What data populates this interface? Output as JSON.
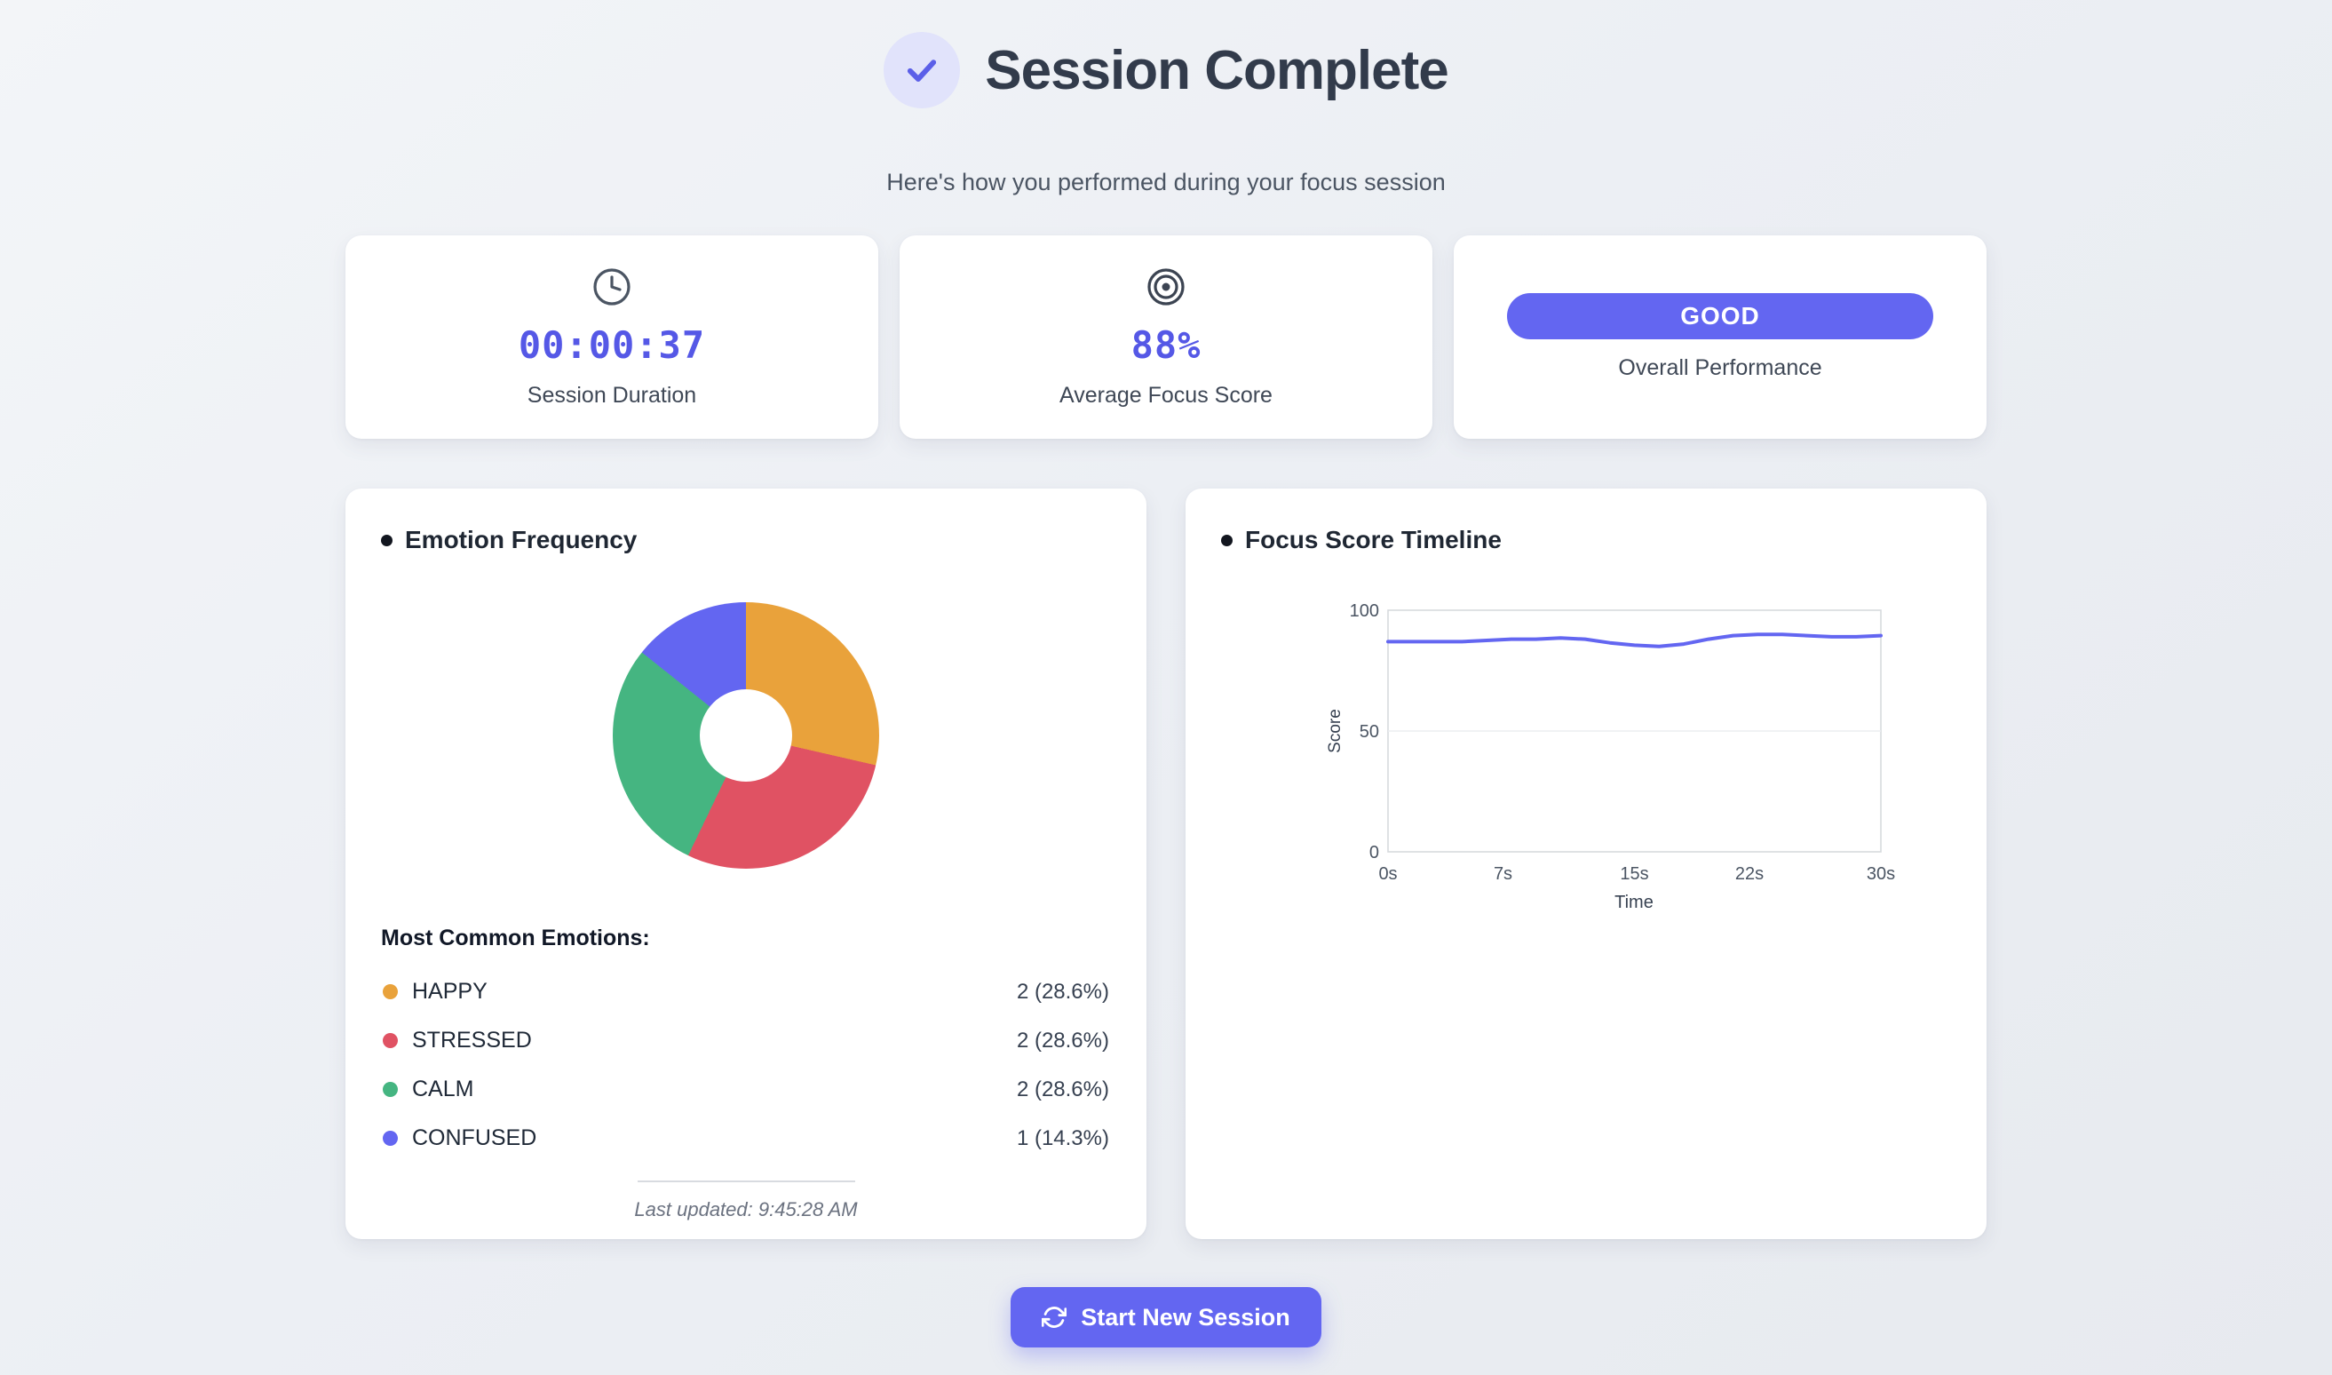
{
  "header": {
    "title": "Session Complete",
    "subtitle": "Here's how you performed during your focus session"
  },
  "stats": [
    {
      "icon": "clock-icon",
      "value": "00:00:37",
      "label": "Session Duration"
    },
    {
      "icon": "target-icon",
      "value": "88%",
      "label": "Average Focus Score"
    },
    {
      "badge": "GOOD",
      "label": "Overall Performance"
    }
  ],
  "emotion_panel": {
    "title": "Emotion Frequency",
    "legend_heading": "Most Common Emotions:",
    "emotions": [
      {
        "name": "HAPPY",
        "count": "2 (28.6%)",
        "value": 28.6,
        "color": "#e9a23b"
      },
      {
        "name": "STRESSED",
        "count": "2 (28.6%)",
        "value": 28.6,
        "color": "#e05263"
      },
      {
        "name": "CALM",
        "count": "2 (28.6%)",
        "value": 28.6,
        "color": "#45b581"
      },
      {
        "name": "CONFUSED",
        "count": "1 (14.3%)",
        "value": 14.3,
        "color": "#6366f1"
      }
    ],
    "last_updated": "Last updated: 9:45:28 AM"
  },
  "timeline_panel": {
    "title": "Focus Score Timeline"
  },
  "footer": {
    "start_button_label": "Start New Session"
  },
  "colors": {
    "accent": "#6366f1",
    "value_text": "#5558e6",
    "good_badge": "#6366f1",
    "happy": "#e9a23b",
    "stressed": "#e05263",
    "calm": "#45b581",
    "confused": "#6366f1"
  },
  "chart_data": [
    {
      "type": "pie",
      "donut": true,
      "title": "Emotion Frequency",
      "labels": [
        "HAPPY",
        "STRESSED",
        "CALM",
        "CONFUSED"
      ],
      "values": [
        28.6,
        28.6,
        28.6,
        14.3
      ],
      "counts": [
        2,
        2,
        2,
        1
      ],
      "colors": [
        "#e9a23b",
        "#e05263",
        "#45b581",
        "#6366f1"
      ]
    },
    {
      "type": "line",
      "title": "Focus Score Timeline",
      "xlabel": "Time",
      "ylabel": "Score",
      "ylim": [
        0,
        100
      ],
      "ytick_labels": [
        "0",
        "50",
        "100"
      ],
      "xtick_labels": [
        "0s",
        "7s",
        "15s",
        "22s",
        "30s"
      ],
      "xtick_values": [
        0,
        7,
        15,
        22,
        30
      ],
      "x": [
        0,
        1.5,
        3,
        4.5,
        6,
        7.5,
        9,
        10.5,
        12,
        13.5,
        15,
        16.5,
        18,
        19.5,
        21,
        22.5,
        24,
        25.5,
        27,
        28.5,
        30
      ],
      "values": [
        87,
        87,
        87,
        87,
        87.5,
        88,
        88,
        88.5,
        88,
        86.5,
        85.5,
        85,
        86,
        88,
        89.5,
        90,
        90,
        89.5,
        89,
        89,
        89.5
      ],
      "line_color": "#6366f1",
      "grid": "horizontal-at-50",
      "legend": "none"
    }
  ]
}
